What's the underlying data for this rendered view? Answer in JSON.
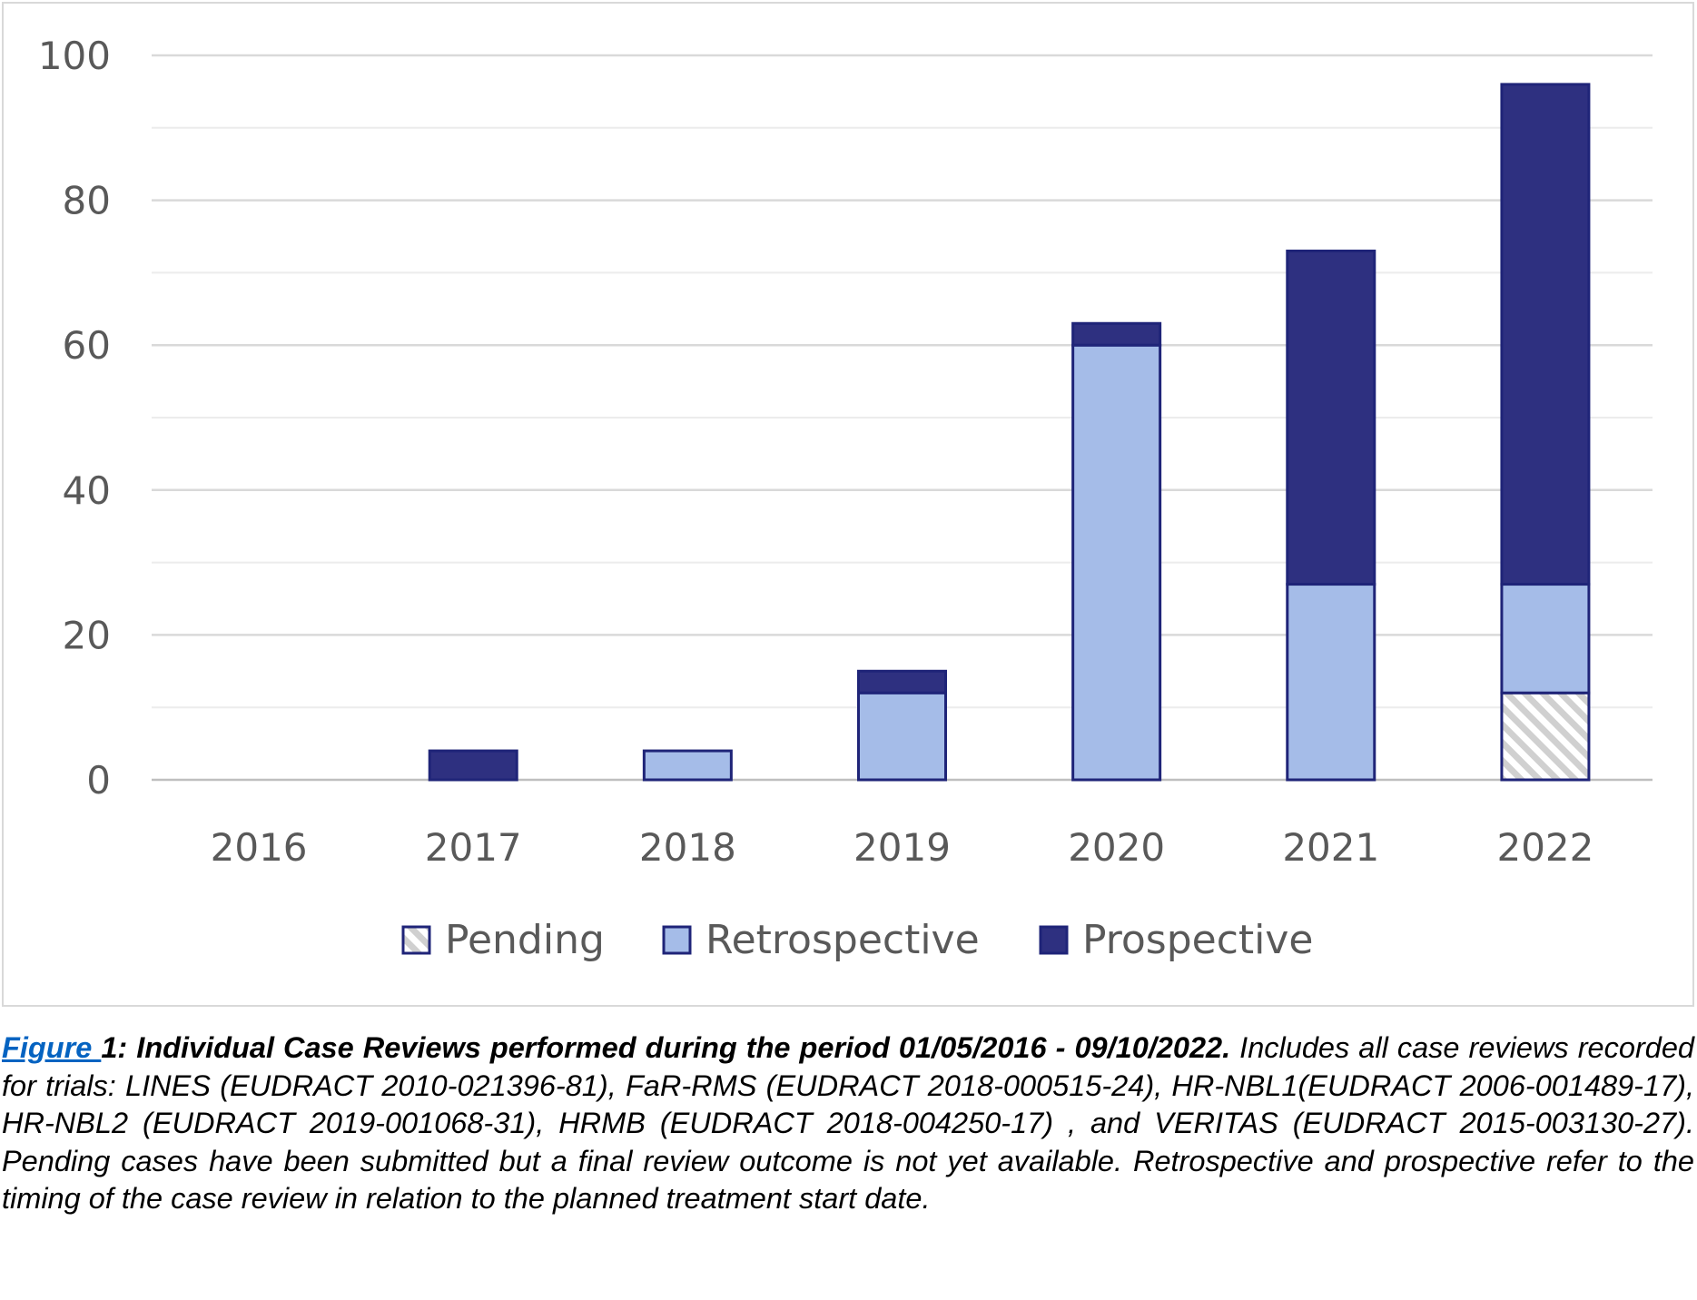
{
  "chart_data": {
    "type": "bar",
    "stacked": true,
    "categories": [
      "2016",
      "2017",
      "2018",
      "2019",
      "2020",
      "2021",
      "2022"
    ],
    "series": [
      {
        "name": "Pending",
        "values": [
          0,
          0,
          0,
          0,
          0,
          0,
          12
        ],
        "color": "#d9d9d9",
        "pattern": "diagonal-hatch"
      },
      {
        "name": "Retrospective",
        "values": [
          0,
          0,
          4,
          12,
          60,
          27,
          15
        ],
        "color": "#a5bce8"
      },
      {
        "name": "Prospective",
        "values": [
          0,
          4,
          0,
          3,
          3,
          46,
          69
        ],
        "color": "#2e3080"
      }
    ],
    "y_ticks": [
      "0",
      "20",
      "40",
      "60",
      "80",
      "100"
    ],
    "ylim": [
      0,
      100
    ],
    "grid": true,
    "legend_position": "bottom",
    "bar_outline_color": "#1f2478"
  },
  "caption": {
    "link_text": "Figure ",
    "title": "1: Individual Case Reviews performed during the period 01/05/2016 - 09/10/2022.",
    "body": " Includes all case reviews recorded for trials: LINES (EUDRACT 2010-021396-81), FaR-RMS (EUDRACT 2018-000515-24), HR-NBL1(EUDRACT 2006-001489-17), HR-NBL2 (EUDRACT 2019-001068-31), HRMB (EUDRACT 2018-004250-17) , and VERITAS (EUDRACT 2015-003130-27). Pending cases have been submitted but a final review outcome is not yet available. Retrospective and prospective refer to the timing of the case review in relation to the planned treatment start date."
  }
}
